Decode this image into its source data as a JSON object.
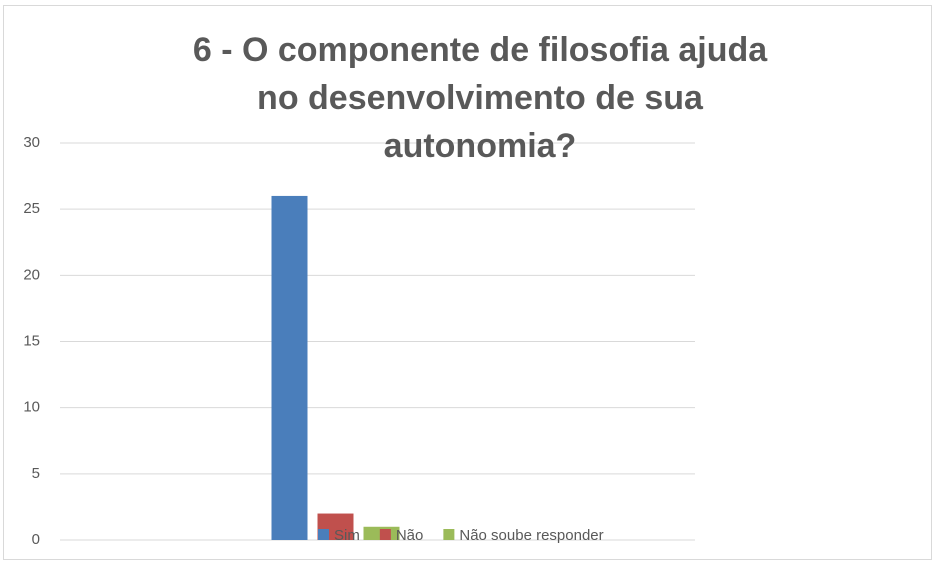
{
  "chart_data": {
    "type": "bar",
    "title": "6 - O componente de filosofia ajuda no desenvolvimento de sua autonomia?",
    "categories": [
      null
    ],
    "series": [
      {
        "name": "Sim",
        "color": "#4a7ebb",
        "values": [
          26
        ]
      },
      {
        "name": "Não",
        "color": "#c0504d",
        "values": [
          2
        ]
      },
      {
        "name": "Não soube responder",
        "color": "#9bbb59",
        "values": [
          1
        ]
      }
    ],
    "ylim": [
      0,
      30
    ],
    "yticks": [
      0,
      5,
      10,
      15,
      20,
      25,
      30
    ],
    "grid": true,
    "legend": "bottom"
  }
}
